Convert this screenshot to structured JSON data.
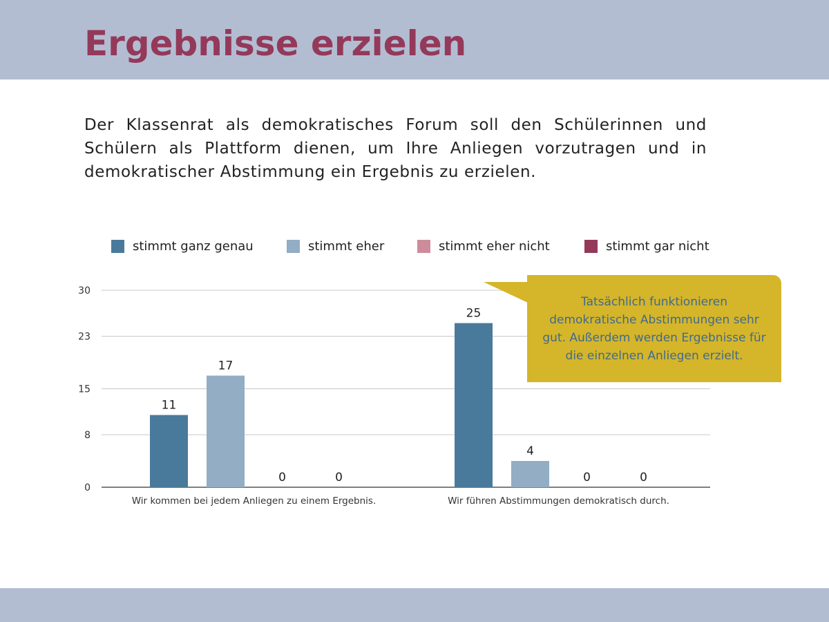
{
  "header": {
    "title": "Ergebnisse erzielen"
  },
  "intro": "Der Klassenrat als demokratisches Forum soll den Schülerinnen und Schülern als Plattform dienen, um Ihre Anliegen vorzutragen und in demokratischer Abstimmung ein Ergebnis zu erzielen.",
  "callout": "Tatsächlich funktionieren demokratische Abstimmungen sehr gut. Außerdem werden Ergebnisse für die einzelnen Anliegen erzielt.",
  "colors": {
    "band": "#b3bdd2",
    "title": "#94395a",
    "callout_bg": "#d5b52a",
    "callout_text": "#3f6b8e"
  },
  "chart_data": {
    "type": "bar",
    "categories": [
      "Wir kommen bei jedem Anliegen zu einem Ergebnis.",
      "Wir führen Abstimmungen demokratisch durch."
    ],
    "series": [
      {
        "name": "stimmt ganz genau",
        "color": "#4a7a9b",
        "values": [
          11,
          25
        ]
      },
      {
        "name": "stimmt eher",
        "color": "#92adc4",
        "values": [
          17,
          4
        ]
      },
      {
        "name": "stimmt eher nicht",
        "color": "#cd8c9c",
        "values": [
          0,
          0
        ]
      },
      {
        "name": "stimmt gar nicht",
        "color": "#94395a",
        "values": [
          0,
          0
        ]
      }
    ],
    "yticks": [
      0,
      8,
      15,
      23,
      30
    ],
    "ylim": [
      0,
      30
    ],
    "grid": true,
    "legend": "top"
  }
}
